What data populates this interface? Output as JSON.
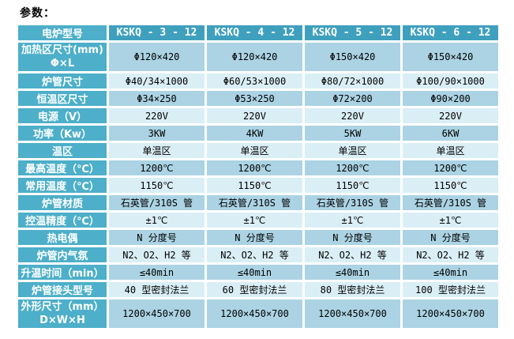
{
  "page": {
    "title": "参数："
  },
  "colors": {
    "header_bg": "#3FA0BE",
    "label_bg": "#4DAFC9",
    "row_medium_bg": "#ABD3E3",
    "row_light_bg": "#DAEEF6",
    "grid_line": "#FFFFFF",
    "header_text": "#FFFFFF",
    "cell_text": "#000000"
  },
  "table": {
    "header": {
      "label": "电炉型号",
      "models": [
        "KSKQ - 3 - 12",
        "KSKQ - 4 - 12",
        "KSKQ - 5 - 12",
        "KSKQ - 6 - 12"
      ]
    },
    "rows": [
      {
        "label": "加热区尺寸(mm)",
        "label2": "Φ×L",
        "values": [
          "Φ120×420",
          "Φ120×420",
          "Φ150×420",
          "Φ150×420"
        ]
      },
      {
        "label": "炉管尺寸",
        "values": [
          "Φ40/34×1000",
          "Φ60/53×1000",
          "Φ80/72×1000",
          "Φ100/90×1000"
        ]
      },
      {
        "label": "恒温区尺寸",
        "values": [
          "Φ34×250",
          "Φ53×250",
          "Φ72×200",
          "Φ90×200"
        ]
      },
      {
        "label": "电源（V）",
        "values": [
          "220V",
          "220V",
          "220V",
          "220V"
        ]
      },
      {
        "label": "功率（Kw）",
        "values": [
          "3KW",
          "4KW",
          "5KW",
          "6KW"
        ]
      },
      {
        "label": "温区",
        "values": [
          "单温区",
          "单温区",
          "单温区",
          "单温区"
        ]
      },
      {
        "label": "最高温度（℃）",
        "values": [
          "1200℃",
          "1200℃",
          "1200℃",
          "1200℃"
        ]
      },
      {
        "label": "常用温度（℃）",
        "values": [
          "1150℃",
          "1150℃",
          "1150℃",
          "1150℃"
        ]
      },
      {
        "label": "炉管材质",
        "values": [
          "石英管/310S 管",
          "石英管/310S 管",
          "石英管/310S 管",
          "石英管/310S 管"
        ]
      },
      {
        "label": "控温精度（℃）",
        "values": [
          "±1℃",
          "±1℃",
          "±1℃",
          "±1℃"
        ]
      },
      {
        "label": "热电偶",
        "values": [
          "N 分度号",
          "N 分度号",
          "N 分度号",
          "N 分度号"
        ]
      },
      {
        "label": "炉管内气氛",
        "values": [
          "N2、O2、H2 等",
          "N2、O2、H2 等",
          "N2、O2、H2 等",
          "N2、O2、H2 等"
        ]
      },
      {
        "label": "升温时间（min）",
        "values": [
          "≤40min",
          "≤40min",
          "≤40min",
          "≤40min"
        ]
      },
      {
        "label": "炉管接头型号",
        "values": [
          "40 型密封法兰",
          "60 型密封法兰",
          "80 型密封法兰",
          "100 型密封法兰"
        ]
      },
      {
        "label": "外形尺寸（mm）",
        "label2": "D×W×H",
        "values": [
          "1200×450×700",
          "1200×450×700",
          "1200×450×700",
          "1200×450×700"
        ]
      }
    ]
  }
}
